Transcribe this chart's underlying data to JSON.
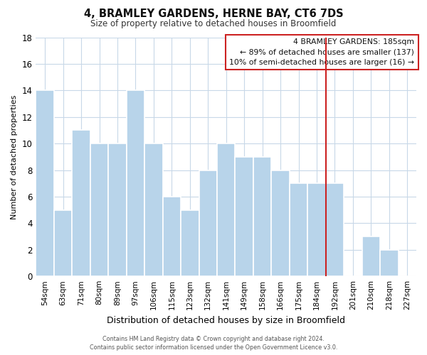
{
  "title": "4, BRAMLEY GARDENS, HERNE BAY, CT6 7DS",
  "subtitle": "Size of property relative to detached houses in Broomfield",
  "xlabel": "Distribution of detached houses by size in Broomfield",
  "ylabel": "Number of detached properties",
  "categories": [
    "54sqm",
    "63sqm",
    "71sqm",
    "80sqm",
    "89sqm",
    "97sqm",
    "106sqm",
    "115sqm",
    "123sqm",
    "132sqm",
    "141sqm",
    "149sqm",
    "158sqm",
    "166sqm",
    "175sqm",
    "184sqm",
    "192sqm",
    "201sqm",
    "210sqm",
    "218sqm",
    "227sqm"
  ],
  "values": [
    14,
    5,
    11,
    10,
    10,
    14,
    10,
    6,
    5,
    8,
    10,
    9,
    9,
    8,
    7,
    7,
    7,
    0,
    3,
    2,
    0
  ],
  "bar_color": "#b8d4ea",
  "bar_edge_color": "#ffffff",
  "highlight_line_color": "#cc2222",
  "highlight_bar_index": 15,
  "ylim": [
    0,
    18
  ],
  "yticks": [
    0,
    2,
    4,
    6,
    8,
    10,
    12,
    14,
    16,
    18
  ],
  "annotation_title": "4 BRAMLEY GARDENS: 185sqm",
  "annotation_line1": "← 89% of detached houses are smaller (137)",
  "annotation_line2": "10% of semi-detached houses are larger (16) →",
  "footer_line1": "Contains HM Land Registry data © Crown copyright and database right 2024.",
  "footer_line2": "Contains public sector information licensed under the Open Government Licence v3.0.",
  "background_color": "#ffffff",
  "grid_color": "#c8d8e8"
}
